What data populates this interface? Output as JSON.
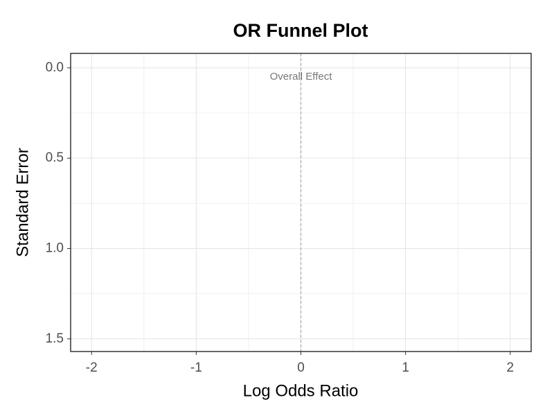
{
  "chart_data": {
    "type": "scatter",
    "title": "OR Funnel Plot",
    "x_label": "Log Odds Ratio",
    "y_label": "Standard Error",
    "xlim": [
      -2.2,
      2.2
    ],
    "xticks": [
      -2,
      -1,
      0,
      1,
      2
    ],
    "minor_xticks": [
      -1.5,
      -0.5,
      0.5,
      1.5
    ],
    "ylim": [
      1.57,
      -0.08
    ],
    "yticks": [
      {
        "value": 0,
        "label": "0.0"
      },
      {
        "value": 0.5,
        "label": "0.5"
      },
      {
        "value": 1,
        "label": "1.0"
      },
      {
        "value": 1.5,
        "label": "1.5"
      }
    ],
    "minor_yticks": [
      0.25,
      0.75,
      1.25
    ],
    "grid": true,
    "reference_line": {
      "x": 0,
      "label": "Overall Effect",
      "color": "#999999"
    }
  }
}
